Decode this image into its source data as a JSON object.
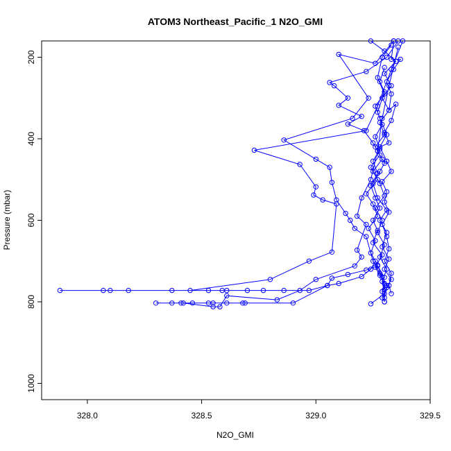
{
  "chart_data": {
    "type": "line",
    "title": "ATOM3 Northeast_Pacific_1 N2O_GMI",
    "xlabel": "N2O_GMI",
    "ylabel": "Pressure (mbar)",
    "xlim": [
      327.8,
      329.5
    ],
    "ylim": [
      1040,
      160
    ],
    "y_reversed": true,
    "x_ticks": [
      "328.0",
      "328.5",
      "329.0",
      "329.5"
    ],
    "x_tick_values": [
      328.0,
      328.5,
      329.0,
      329.5
    ],
    "y_ticks": [
      "200",
      "400",
      "600",
      "800",
      "1000"
    ],
    "y_tick_values": [
      200,
      400,
      600,
      800,
      1000
    ],
    "grid": false,
    "legend": "none",
    "color": "#0000ff",
    "series": [
      {
        "values": [
          [
            329.24,
            160
          ],
          [
            329.3,
            185
          ],
          [
            329.35,
            210
          ],
          [
            329.3,
            240
          ],
          [
            329.33,
            270
          ],
          [
            329.29,
            300
          ],
          [
            329.32,
            330
          ],
          [
            329.28,
            360
          ],
          [
            329.3,
            390
          ],
          [
            329.26,
            420
          ],
          [
            329.29,
            450
          ],
          [
            329.25,
            480
          ],
          [
            329.28,
            510
          ],
          [
            329.3,
            540
          ],
          [
            329.26,
            570
          ],
          [
            329.29,
            600
          ],
          [
            329.27,
            630
          ],
          [
            329.3,
            660
          ],
          [
            329.28,
            690
          ],
          [
            329.31,
            720
          ],
          [
            329.29,
            750
          ],
          [
            329.3,
            780
          ],
          [
            329.24,
            805
          ]
        ]
      },
      {
        "values": [
          [
            329.36,
            160
          ],
          [
            329.31,
            200
          ],
          [
            329.22,
            235
          ],
          [
            329.06,
            262
          ],
          [
            329.08,
            270
          ],
          [
            329.14,
            300
          ],
          [
            329.1,
            318
          ],
          [
            329.2,
            345
          ],
          [
            329.14,
            364
          ],
          [
            329.21,
            380
          ],
          [
            329.25,
            410
          ],
          [
            329.28,
            440
          ],
          [
            329.24,
            470
          ],
          [
            329.27,
            500
          ],
          [
            329.22,
            535
          ],
          [
            329.25,
            560
          ],
          [
            329.27,
            590
          ],
          [
            329.23,
            620
          ],
          [
            329.26,
            650
          ],
          [
            329.24,
            680
          ],
          [
            329.27,
            710
          ],
          [
            329.29,
            740
          ],
          [
            329.3,
            770
          ],
          [
            329.3,
            800
          ]
        ]
      },
      {
        "values": [
          [
            329.34,
            160
          ],
          [
            329.26,
            215
          ],
          [
            329.1,
            193
          ],
          [
            329.23,
            300
          ],
          [
            329.16,
            350
          ],
          [
            328.86,
            403
          ],
          [
            329.0,
            450
          ],
          [
            329.06,
            470
          ],
          [
            329.07,
            507
          ],
          [
            329.09,
            550
          ],
          [
            329.13,
            583
          ],
          [
            329.15,
            600
          ],
          [
            329.17,
            620
          ],
          [
            329.22,
            640
          ],
          [
            329.25,
            700
          ],
          [
            329.28,
            730
          ],
          [
            329.31,
            760
          ],
          [
            329.3,
            790
          ]
        ]
      },
      {
        "values": [
          [
            329.38,
            160
          ],
          [
            329.33,
            230
          ],
          [
            329.27,
            320
          ],
          [
            329.22,
            380
          ],
          [
            328.73,
            428
          ],
          [
            328.93,
            463
          ],
          [
            329.0,
            518
          ],
          [
            328.99,
            538
          ],
          [
            329.03,
            550
          ],
          [
            329.09,
            560
          ],
          [
            329.07,
            678
          ],
          [
            328.97,
            700
          ],
          [
            328.8,
            745
          ],
          [
            328.45,
            772
          ],
          [
            328.07,
            772
          ],
          [
            327.88,
            772
          ],
          [
            328.1,
            772
          ],
          [
            328.18,
            772
          ],
          [
            328.37,
            772
          ],
          [
            328.53,
            772
          ],
          [
            328.59,
            772
          ],
          [
            328.61,
            772
          ],
          [
            328.7,
            772
          ],
          [
            328.77,
            772
          ],
          [
            328.86,
            772
          ],
          [
            328.97,
            772
          ],
          [
            329.05,
            760
          ],
          [
            329.07,
            742
          ],
          [
            329.14,
            733
          ],
          [
            329.22,
            722
          ],
          [
            329.27,
            712
          ],
          [
            329.3,
            740
          ]
        ]
      },
      {
        "values": [
          [
            329.36,
            175
          ],
          [
            329.32,
            270
          ],
          [
            329.29,
            350
          ],
          [
            329.27,
            430
          ],
          [
            329.24,
            500
          ],
          [
            329.2,
            545
          ],
          [
            329.18,
            590
          ],
          [
            329.22,
            610
          ],
          [
            329.18,
            673
          ],
          [
            329.2,
            690
          ],
          [
            329.17,
            712
          ],
          [
            329.0,
            745
          ],
          [
            328.93,
            772
          ],
          [
            328.83,
            795
          ],
          [
            328.61,
            785
          ],
          [
            328.58,
            812
          ],
          [
            328.55,
            812
          ],
          [
            328.42,
            803
          ],
          [
            328.37,
            803
          ],
          [
            328.3,
            803
          ],
          [
            328.41,
            803
          ],
          [
            328.46,
            803
          ],
          [
            328.53,
            803
          ],
          [
            328.61,
            803
          ],
          [
            328.69,
            803
          ],
          [
            328.68,
            803
          ],
          [
            328.55,
            803
          ],
          [
            328.9,
            803
          ],
          [
            329.05,
            760
          ],
          [
            329.1,
            755
          ],
          [
            329.2,
            738
          ],
          [
            329.24,
            720
          ],
          [
            329.26,
            700
          ]
        ]
      },
      {
        "values": [
          [
            329.34,
            160
          ],
          [
            329.33,
            205
          ],
          [
            329.37,
            205
          ],
          [
            329.34,
            230
          ],
          [
            329.31,
            260
          ],
          [
            329.33,
            290
          ],
          [
            329.32,
            330
          ],
          [
            329.35,
            315
          ],
          [
            329.33,
            355
          ],
          [
            329.3,
            385
          ],
          [
            329.32,
            410
          ],
          [
            329.28,
            420
          ],
          [
            329.31,
            455
          ],
          [
            329.33,
            480
          ],
          [
            329.29,
            505
          ],
          [
            329.31,
            530
          ],
          [
            329.3,
            555
          ],
          [
            329.32,
            580
          ],
          [
            329.29,
            610
          ],
          [
            329.31,
            640
          ],
          [
            329.32,
            670
          ],
          [
            329.3,
            700
          ],
          [
            329.33,
            730
          ],
          [
            329.32,
            760
          ],
          [
            329.33,
            780
          ]
        ]
      },
      {
        "values": [
          [
            329.33,
            170
          ],
          [
            329.29,
            200
          ],
          [
            329.27,
            250
          ],
          [
            329.3,
            290
          ],
          [
            329.26,
            320
          ],
          [
            329.28,
            350
          ],
          [
            329.31,
            390
          ],
          [
            329.27,
            430
          ],
          [
            329.3,
            460
          ],
          [
            329.28,
            480
          ],
          [
            329.25,
            510
          ],
          [
            329.27,
            545
          ],
          [
            329.31,
            575
          ],
          [
            329.28,
            600
          ],
          [
            329.31,
            630
          ],
          [
            329.29,
            665
          ],
          [
            329.32,
            695
          ],
          [
            329.3,
            720
          ],
          [
            329.33,
            745
          ],
          [
            329.31,
            765
          ],
          [
            329.29,
            790
          ]
        ]
      },
      {
        "values": [
          [
            329.3,
            225
          ],
          [
            329.28,
            260
          ],
          [
            329.3,
            285
          ],
          [
            329.27,
            335
          ],
          [
            329.29,
            365
          ],
          [
            329.26,
            395
          ],
          [
            329.28,
            425
          ],
          [
            329.25,
            455
          ],
          [
            329.27,
            485
          ],
          [
            329.24,
            515
          ],
          [
            329.26,
            545
          ],
          [
            329.28,
            570
          ],
          [
            329.25,
            600
          ],
          [
            329.27,
            625
          ],
          [
            329.25,
            655
          ],
          [
            329.29,
            685
          ],
          [
            329.26,
            715
          ],
          [
            329.28,
            735
          ],
          [
            329.3,
            755
          ],
          [
            329.29,
            775
          ],
          [
            329.3,
            800
          ]
        ]
      }
    ]
  }
}
